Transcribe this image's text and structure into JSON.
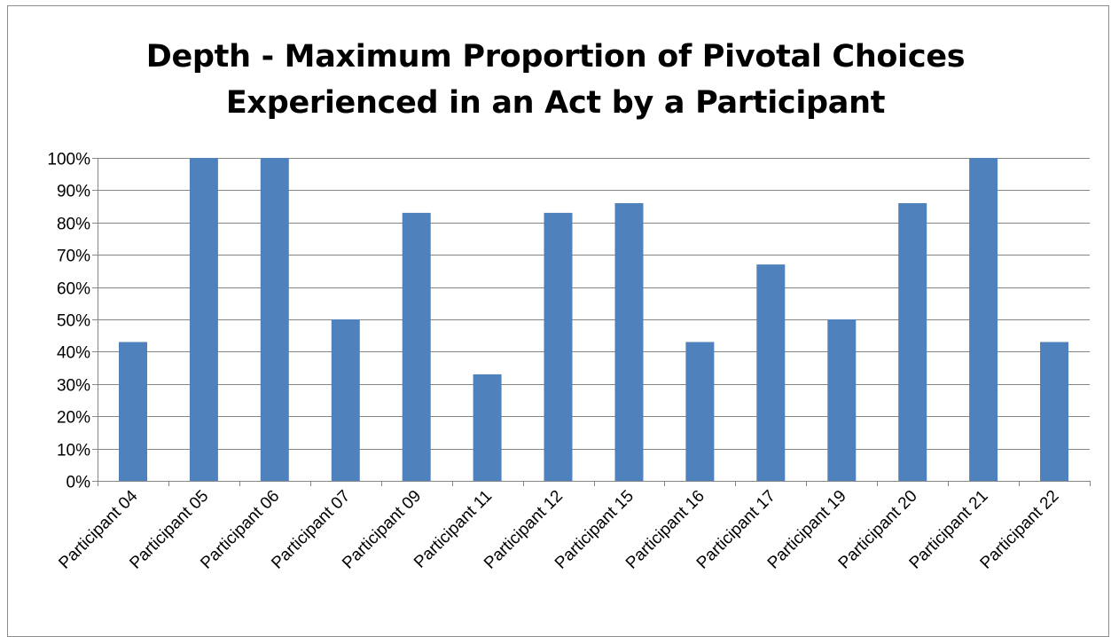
{
  "chart_data": {
    "type": "bar",
    "title": "Depth - Maximum Proportion of Pivotal Choices Experienced in an Act by a Participant",
    "title_lines": [
      "Depth - Maximum Proportion of Pivotal Choices",
      "Experienced in an Act by a Participant"
    ],
    "xlabel": "",
    "ylabel": "",
    "categories": [
      "Participant 04",
      "Participant 05",
      "Participant 06",
      "Participant 07",
      "Participant 09",
      "Participant 11",
      "Participant 12",
      "Participant 15",
      "Participant 16",
      "Participant 17",
      "Participant 19",
      "Participant 20",
      "Participant 21",
      "Participant 22"
    ],
    "values": [
      0.43,
      1.0,
      1.0,
      0.5,
      0.83,
      0.33,
      0.83,
      0.86,
      0.43,
      0.67,
      0.5,
      0.86,
      1.0,
      0.43
    ],
    "ylim": [
      0,
      1
    ],
    "yticks": [
      "0%",
      "10%",
      "20%",
      "30%",
      "40%",
      "50%",
      "60%",
      "70%",
      "80%",
      "90%",
      "100%"
    ],
    "grid": true,
    "legend": "none",
    "bar_color": "#4f81bd",
    "grid_color": "#868686"
  }
}
